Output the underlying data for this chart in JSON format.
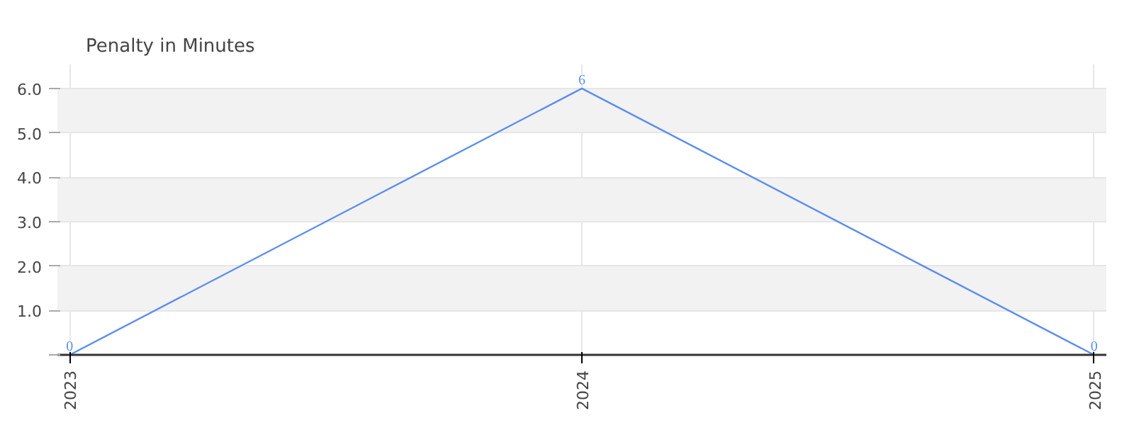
{
  "chart_data": {
    "type": "line",
    "title": "Penalty in Minutes",
    "x": [
      2023,
      2024,
      2025
    ],
    "xlim": [
      2023,
      2025
    ],
    "xticks": [
      2023,
      2024,
      2025
    ],
    "ylim": [
      0,
      6
    ],
    "yticks": [
      {
        "value": 0,
        "label": null
      },
      {
        "value": 1,
        "label": "1.0"
      },
      {
        "value": 2,
        "label": "2.0"
      },
      {
        "value": 3,
        "label": "3.0"
      },
      {
        "value": 4,
        "label": "4.0"
      },
      {
        "value": 5,
        "label": "5.0"
      },
      {
        "value": 6,
        "label": "6.0"
      }
    ],
    "series": [
      {
        "color": "#5b8def",
        "values": [
          0,
          6,
          0
        ]
      }
    ],
    "data_labels": true,
    "grid": true,
    "marker": "none",
    "line_style": "solid"
  }
}
